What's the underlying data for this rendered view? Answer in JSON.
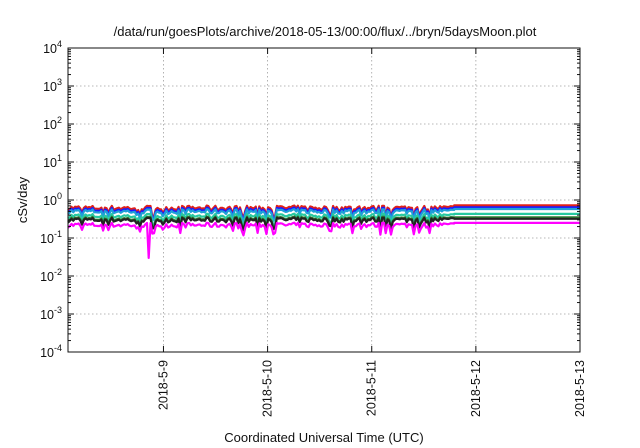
{
  "chart_data": {
    "type": "line",
    "title": "/data/run/goesPlots/archive/2018-05-13/00:00/flux/../bryn/5daysMoon.plot",
    "xlabel": "Coordinated Universal Time (UTC)",
    "ylabel": "cSv/day",
    "yscale": "log",
    "ylim": [
      0.0001,
      10000
    ],
    "y_ticks": [
      {
        "base": "10",
        "exp": "-4"
      },
      {
        "base": "10",
        "exp": "-3"
      },
      {
        "base": "10",
        "exp": "-2"
      },
      {
        "base": "10",
        "exp": "-1"
      },
      {
        "base": "10",
        "exp": "0"
      },
      {
        "base": "10",
        "exp": "1"
      },
      {
        "base": "10",
        "exp": "2"
      },
      {
        "base": "10",
        "exp": "3"
      },
      {
        "base": "10",
        "exp": "4"
      }
    ],
    "x_range": [
      "2018-05-08 02:00",
      "2018-05-13 00:00"
    ],
    "x_ticks": [
      "2018-5-9",
      "2018-5-10",
      "2018-5-11",
      "2018-5-12",
      "2018-5-13"
    ],
    "grid": true,
    "data_end": "2018-05-11 19:00",
    "series": [
      {
        "color": "#e0201a",
        "baseline": 0.62,
        "flat_value": 0.72,
        "spike": null
      },
      {
        "color": "#1a1aff",
        "baseline": 0.55,
        "flat_value": 0.64,
        "spike": null
      },
      {
        "color": "#1fa0d8",
        "baseline": 0.5,
        "flat_value": 0.58,
        "spike": null
      },
      {
        "color": "#27c9a0",
        "baseline": 0.38,
        "flat_value": 0.43,
        "spike": null
      },
      {
        "color": "#2e7d32",
        "baseline": 0.32,
        "flat_value": 0.35,
        "spike": null
      },
      {
        "color": "#222222",
        "baseline": 0.3,
        "flat_value": 0.32,
        "spike": null
      },
      {
        "color": "#ff00ff",
        "baseline": 0.22,
        "flat_value": 0.25,
        "spike": {
          "x": "2018-05-08 20:30",
          "value": 0.03
        }
      }
    ]
  }
}
